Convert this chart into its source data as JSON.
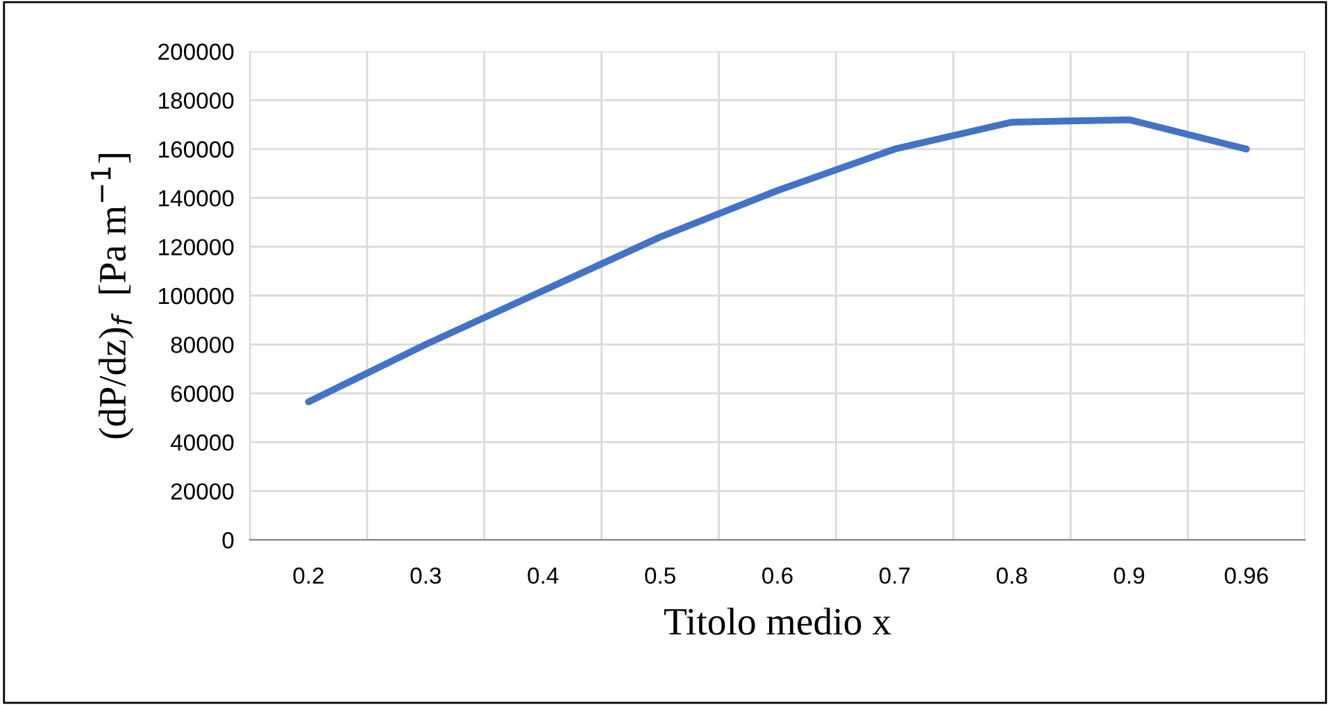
{
  "chart_data": {
    "type": "line",
    "xlabel": "Titolo medio x",
    "ylabel": "(dP/dz)$_{f}$  [Pa m$^{−1}$]",
    "categories": [
      "0.2",
      "0.3",
      "0.4",
      "0.5",
      "0.6",
      "0.7",
      "0.8",
      "0.9",
      "0.96"
    ],
    "series": [
      {
        "color": "#4472c4",
        "values": [
          56500,
          80000,
          102000,
          124000,
          143000,
          160000,
          171000,
          172000,
          160000
        ]
      }
    ],
    "ylim": [
      0,
      200000
    ],
    "yticks": [
      0,
      20000,
      40000,
      60000,
      80000,
      100000,
      120000,
      140000,
      160000,
      180000,
      200000
    ],
    "grid": true,
    "legend": false
  }
}
